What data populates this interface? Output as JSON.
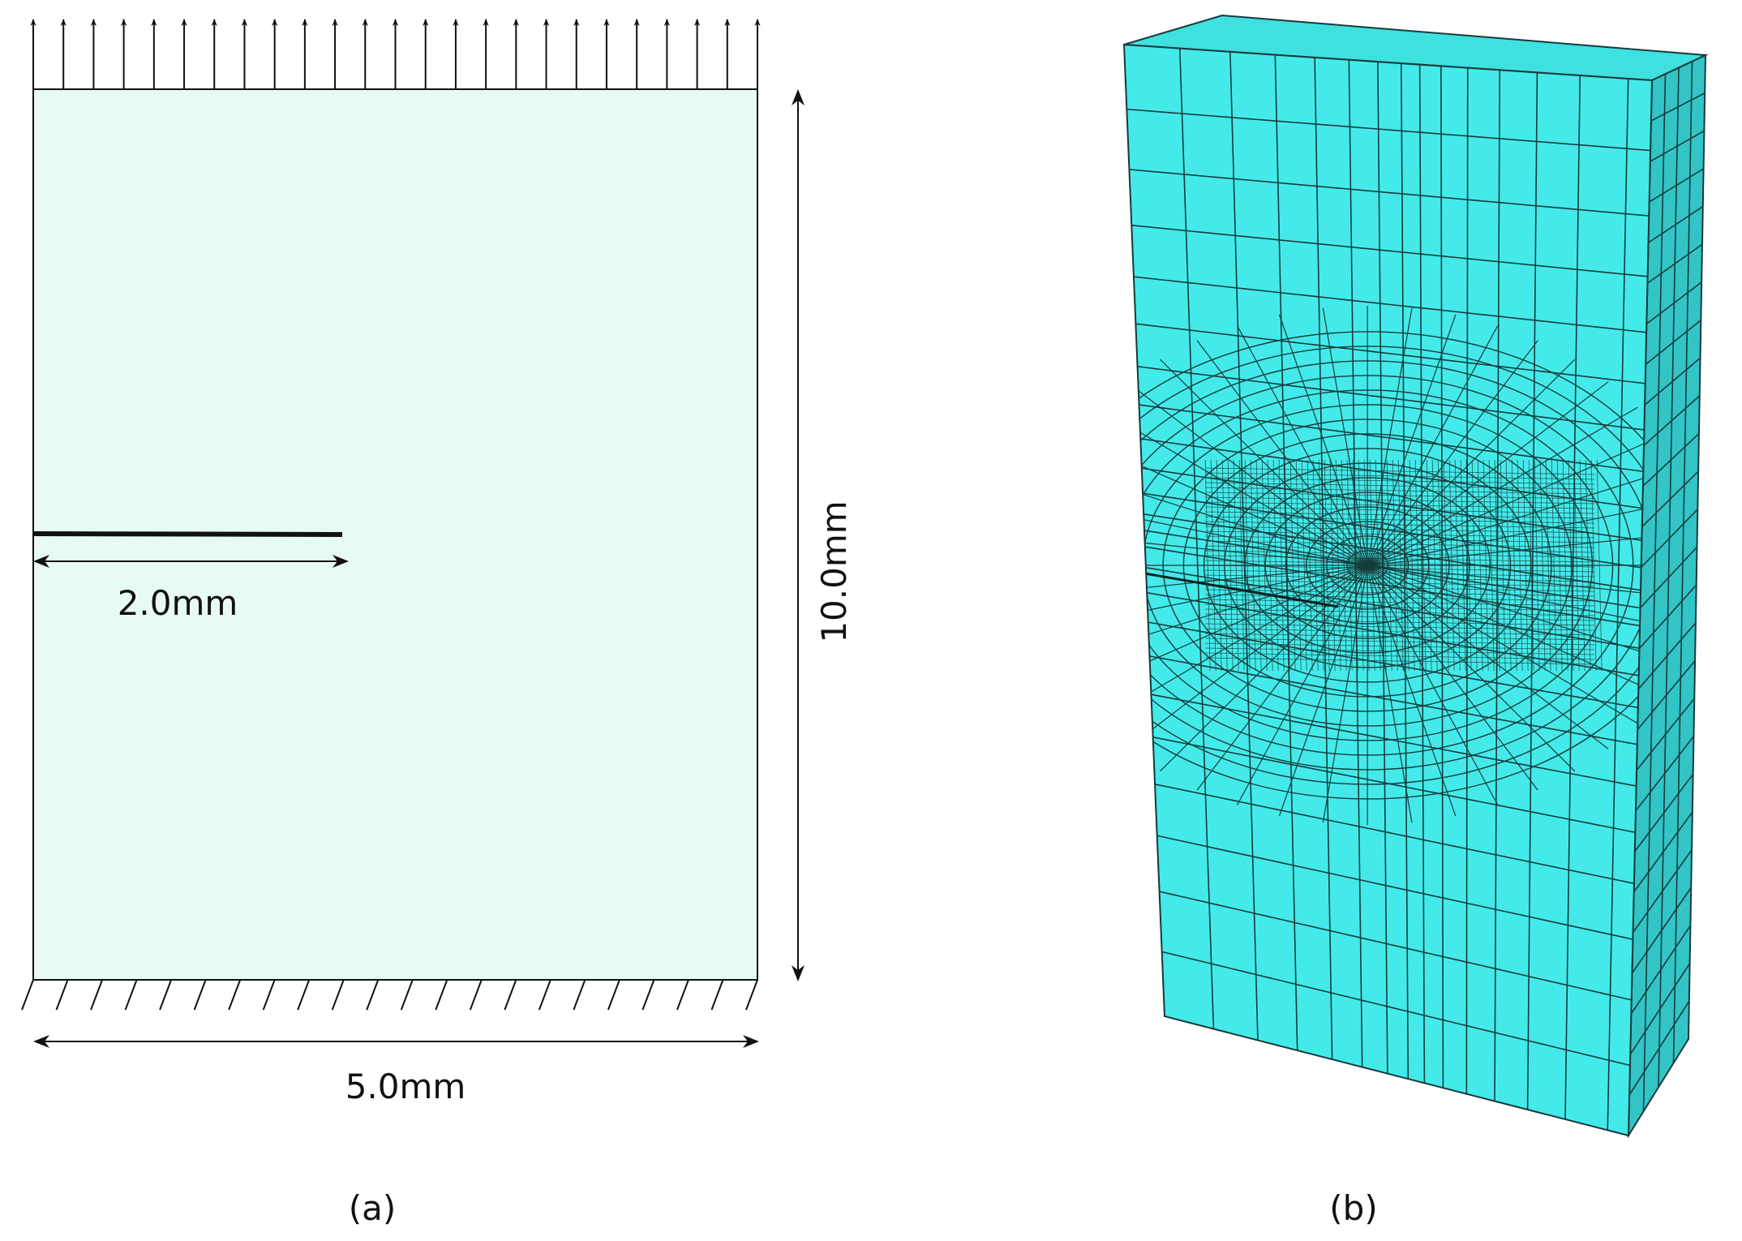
{
  "panel_a": {
    "crack_length": "2.0mm",
    "height": "10.0mm",
    "width": "5.0mm",
    "caption": "(a)"
  },
  "panel_b": {
    "caption": "(b)"
  }
}
